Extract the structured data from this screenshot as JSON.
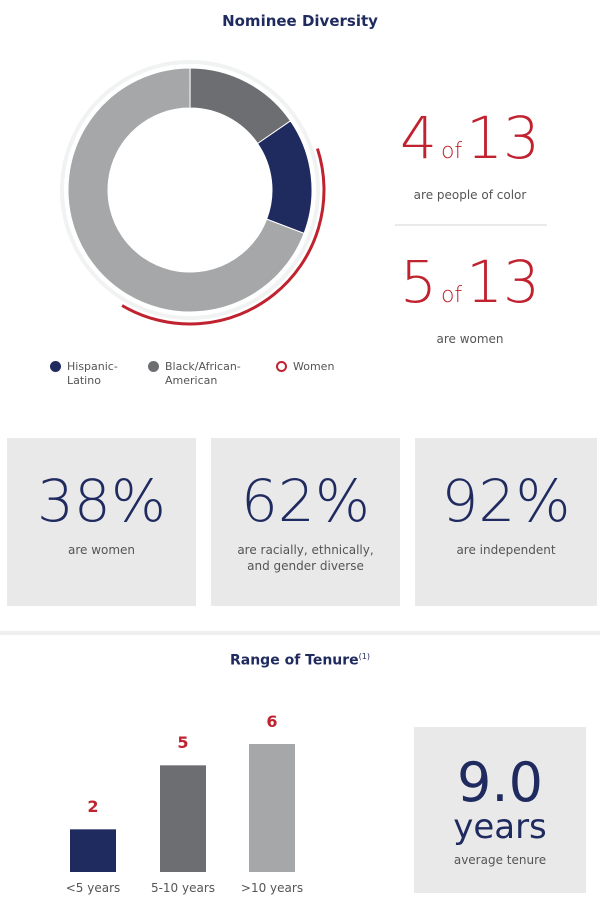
{
  "title": "Nominee Diversity",
  "chart_data": [
    {
      "type": "donut",
      "categories": [
        "Hispanic-Latino",
        null,
        "Black/African-American"
      ],
      "values": [
        2,
        9,
        2
      ],
      "colors": [
        "#1f2a5f",
        "#a6a7a9",
        "#6d6e71"
      ],
      "overlay": {
        "name": "Women",
        "value": 5,
        "color": "#c0222f"
      }
    },
    {
      "type": "bar",
      "title": "Range of Tenure",
      "title_note": "(1)",
      "categories": [
        "<5 years",
        "5-10 years",
        ">10 years"
      ],
      "values": [
        2,
        5,
        6
      ],
      "colors": [
        "#1f2a5f",
        "#6d6e71",
        "#a6a7a9"
      ],
      "label_color": "#c0222f"
    }
  ],
  "callouts": [
    {
      "count": "4",
      "word": "of",
      "total": "13",
      "label": "are people of color"
    },
    {
      "count": "5",
      "word": "of",
      "total": "13",
      "label": "are women"
    }
  ],
  "stats": [
    {
      "value": "38%",
      "label": "are women"
    },
    {
      "value": "62%",
      "label": "are racially, ethnically, and gender diverse"
    },
    {
      "value": "92%",
      "label": "are independent"
    }
  ],
  "tenure": {
    "value": "9.0",
    "unit": "years",
    "label": "average tenure"
  }
}
